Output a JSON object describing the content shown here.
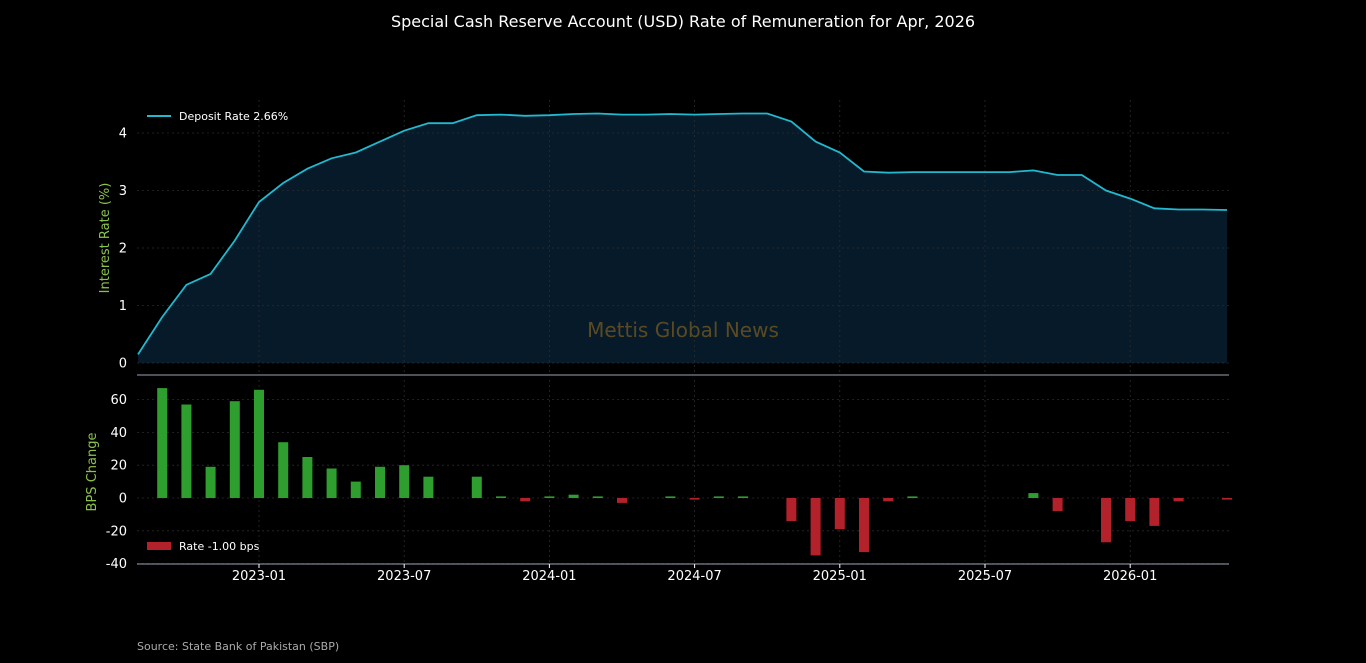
{
  "chart_data": [
    {
      "type": "area",
      "title": "Special Cash Reserve Account (USD) Rate of Remuneration for Apr, 2026",
      "ylabel": "Interest Rate (%)",
      "ylim": [
        -0.2,
        4.6
      ],
      "yticks": [
        0,
        1,
        2,
        3,
        4
      ],
      "grid": true,
      "legend_position": "top-left",
      "series": [
        {
          "name": "Deposit Rate 2.66%",
          "color": "#22b8cf",
          "points": [
            [
              "2022-08",
              0.15
            ],
            [
              "2022-09",
              0.8
            ],
            [
              "2022-10",
              1.36
            ],
            [
              "2022-11",
              1.55
            ],
            [
              "2022-12",
              2.13
            ],
            [
              "2023-01",
              2.8
            ],
            [
              "2023-02",
              3.13
            ],
            [
              "2023-03",
              3.38
            ],
            [
              "2023-04",
              3.56
            ],
            [
              "2023-05",
              3.66
            ],
            [
              "2023-06",
              3.85
            ],
            [
              "2023-07",
              4.04
            ],
            [
              "2023-08",
              4.17
            ],
            [
              "2023-09",
              4.17
            ],
            [
              "2023-10",
              4.31
            ],
            [
              "2023-11",
              4.32
            ],
            [
              "2023-12",
              4.3
            ],
            [
              "2024-01",
              4.31
            ],
            [
              "2024-02",
              4.33
            ],
            [
              "2024-03",
              4.34
            ],
            [
              "2024-04",
              4.32
            ],
            [
              "2024-05",
              4.32
            ],
            [
              "2024-06",
              4.33
            ],
            [
              "2024-07",
              4.32
            ],
            [
              "2024-08",
              4.33
            ],
            [
              "2024-09",
              4.34
            ],
            [
              "2024-10",
              4.34
            ],
            [
              "2024-11",
              4.2
            ],
            [
              "2024-12",
              3.85
            ],
            [
              "2025-01",
              3.66
            ],
            [
              "2025-02",
              3.33
            ],
            [
              "2025-03",
              3.31
            ],
            [
              "2025-04",
              3.32
            ],
            [
              "2025-05",
              3.32
            ],
            [
              "2025-06",
              3.32
            ],
            [
              "2025-07",
              3.32
            ],
            [
              "2025-08",
              3.32
            ],
            [
              "2025-09",
              3.35
            ],
            [
              "2025-10",
              3.27
            ],
            [
              "2025-11",
              3.27
            ],
            [
              "2025-12",
              3.0
            ],
            [
              "2026-01",
              2.86
            ],
            [
              "2026-02",
              2.69
            ],
            [
              "2026-03",
              2.67
            ],
            [
              "2026-04",
              2.67
            ],
            [
              "2026-05",
              2.66
            ]
          ]
        }
      ],
      "watermark": "Mettis Global News",
      "title_color": "#ffffff",
      "ylabel_color": "#8bc34a",
      "fill_color": "#071a2a"
    },
    {
      "type": "bar",
      "ylabel": "BPS Change",
      "ylim": [
        -40,
        72
      ],
      "yticks": [
        -40,
        -20,
        0,
        20,
        40,
        60
      ],
      "xticks": [
        "2023-01",
        "2023-07",
        "2024-01",
        "2024-07",
        "2025-01",
        "2025-07",
        "2026-01"
      ],
      "grid": true,
      "legend_position": "bottom-left",
      "positive_color": "#2e9e2e",
      "negative_color": "#b3212a",
      "ylabel_color": "#8bc34a",
      "series": [
        {
          "name": "Rate -1.00 bps",
          "points": [
            [
              "2022-09",
              67
            ],
            [
              "2022-10",
              57
            ],
            [
              "2022-11",
              19
            ],
            [
              "2022-12",
              59
            ],
            [
              "2023-01",
              66
            ],
            [
              "2023-02",
              34
            ],
            [
              "2023-03",
              25
            ],
            [
              "2023-04",
              18
            ],
            [
              "2023-05",
              10
            ],
            [
              "2023-06",
              19
            ],
            [
              "2023-07",
              20
            ],
            [
              "2023-08",
              13
            ],
            [
              "2023-09",
              0
            ],
            [
              "2023-10",
              13
            ],
            [
              "2023-11",
              1
            ],
            [
              "2023-12",
              -2
            ],
            [
              "2024-01",
              1
            ],
            [
              "2024-02",
              2
            ],
            [
              "2024-03",
              1
            ],
            [
              "2024-04",
              -3
            ],
            [
              "2024-05",
              0
            ],
            [
              "2024-06",
              1
            ],
            [
              "2024-07",
              -1
            ],
            [
              "2024-08",
              1
            ],
            [
              "2024-09",
              1
            ],
            [
              "2024-10",
              0
            ],
            [
              "2024-11",
              -14
            ],
            [
              "2024-12",
              -35
            ],
            [
              "2025-01",
              -19
            ],
            [
              "2025-02",
              -33
            ],
            [
              "2025-03",
              -2
            ],
            [
              "2025-04",
              1
            ],
            [
              "2025-05",
              0
            ],
            [
              "2025-06",
              0
            ],
            [
              "2025-07",
              0
            ],
            [
              "2025-08",
              0
            ],
            [
              "2025-09",
              3
            ],
            [
              "2025-10",
              -8
            ],
            [
              "2025-11",
              0
            ],
            [
              "2025-12",
              -27
            ],
            [
              "2026-01",
              -14
            ],
            [
              "2026-02",
              -17
            ],
            [
              "2026-03",
              -2
            ],
            [
              "2026-04",
              0
            ],
            [
              "2026-05",
              -1
            ]
          ]
        }
      ]
    }
  ],
  "footer": {
    "source": "Source: State Bank of Pakistan (SBP)"
  }
}
